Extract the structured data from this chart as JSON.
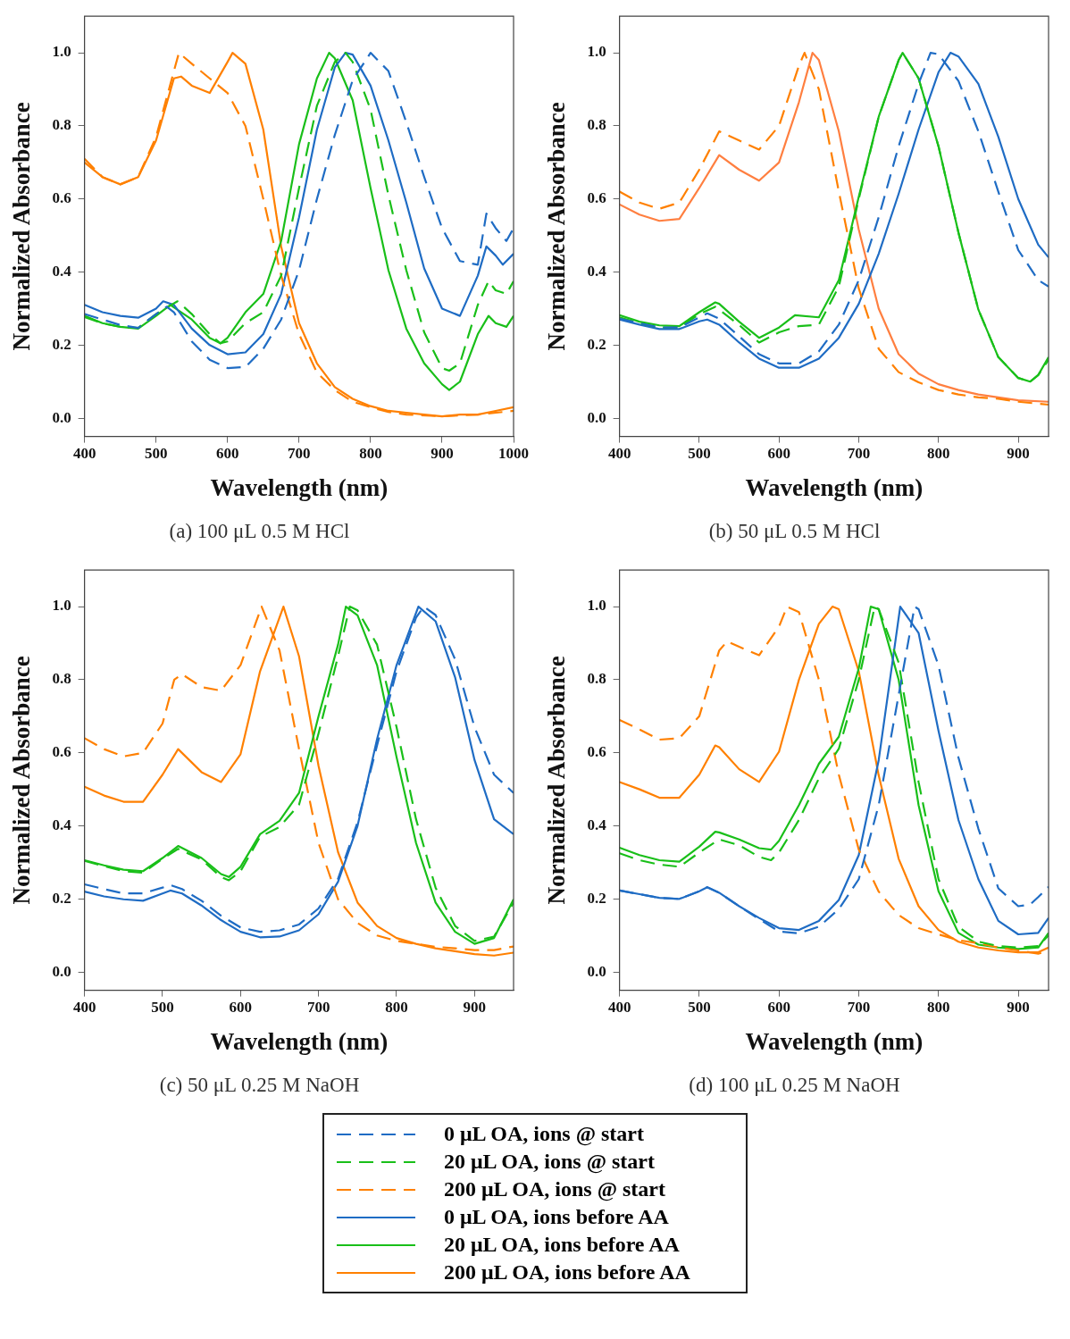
{
  "chart_data": [
    {
      "type": "line",
      "title": "(a) 100 μL 0.5 M HCl",
      "xlabel": "Wavelength (nm)",
      "ylabel": "Normalized Absorbance",
      "xlim": [
        400,
        1000
      ],
      "xticks": [
        400,
        500,
        600,
        700,
        800,
        900,
        1000
      ],
      "ylim": [
        -0.05,
        1.1
      ],
      "yticks": [
        {
          "value": 0,
          "label": "0.0"
        },
        {
          "value": 0.2,
          "label": "0.2"
        },
        {
          "value": 0.4,
          "label": "0.4"
        },
        {
          "value": 0.6,
          "label": "0.6"
        },
        {
          "value": 0.8,
          "label": "0.8"
        },
        {
          "value": 1,
          "label": "1.0"
        }
      ],
      "grid": false,
      "marker": "none",
      "legend": "bottom",
      "series": [
        {
          "name": "0 μL OA, ions @ start",
          "color": "#1f6cc4",
          "line_style": "dashed",
          "x": [
            400,
            425,
            450,
            475,
            500,
            515,
            525,
            550,
            575,
            600,
            625,
            650,
            675,
            700,
            725,
            750,
            775,
            800,
            825,
            850,
            875,
            900,
            925,
            950,
            962,
            975,
            990,
            1000
          ],
          "values": [
            0.285,
            0.27,
            0.255,
            0.247,
            0.285,
            0.305,
            0.29,
            0.21,
            0.16,
            0.137,
            0.14,
            0.19,
            0.27,
            0.405,
            0.6,
            0.775,
            0.925,
            1.0,
            0.95,
            0.81,
            0.66,
            0.52,
            0.43,
            0.42,
            0.56,
            0.52,
            0.485,
            0.52
          ]
        },
        {
          "name": "20 μL OA, ions @ start",
          "color": "#19bf19",
          "line_style": "dashed",
          "x": [
            400,
            425,
            450,
            475,
            500,
            530,
            550,
            575,
            590,
            600,
            625,
            650,
            675,
            700,
            725,
            750,
            765,
            775,
            800,
            825,
            850,
            875,
            900,
            910,
            925,
            950,
            965,
            975,
            990,
            1000
          ],
          "values": [
            0.277,
            0.26,
            0.25,
            0.247,
            0.285,
            0.32,
            0.285,
            0.23,
            0.205,
            0.21,
            0.26,
            0.29,
            0.39,
            0.63,
            0.855,
            0.975,
            1.0,
            0.975,
            0.845,
            0.61,
            0.405,
            0.235,
            0.137,
            0.13,
            0.15,
            0.31,
            0.375,
            0.35,
            0.34,
            0.375
          ]
        },
        {
          "name": "200 μL OA, ions @ start",
          "color": "#ff8000",
          "line_style": "dashed",
          "x": [
            400,
            425,
            450,
            475,
            500,
            525,
            532,
            550,
            575,
            600,
            625,
            650,
            675,
            700,
            725,
            750,
            775,
            800,
            825,
            850,
            900,
            950,
            1000
          ],
          "values": [
            0.71,
            0.66,
            0.64,
            0.66,
            0.77,
            0.95,
            1.0,
            0.97,
            0.93,
            0.89,
            0.8,
            0.6,
            0.39,
            0.23,
            0.125,
            0.077,
            0.045,
            0.03,
            0.017,
            0.01,
            0.005,
            0.01,
            0.02
          ]
        },
        {
          "name": "0 μL OA, ions before AA",
          "color": "#1f6cc4",
          "line_style": "solid",
          "x": [
            400,
            425,
            450,
            475,
            500,
            510,
            525,
            550,
            575,
            600,
            625,
            650,
            675,
            700,
            725,
            750,
            765,
            775,
            800,
            825,
            850,
            875,
            900,
            925,
            950,
            962,
            975,
            985,
            1000
          ],
          "values": [
            0.31,
            0.29,
            0.28,
            0.275,
            0.3,
            0.32,
            0.31,
            0.245,
            0.2,
            0.175,
            0.18,
            0.23,
            0.34,
            0.55,
            0.79,
            0.96,
            1.0,
            0.995,
            0.91,
            0.76,
            0.59,
            0.41,
            0.3,
            0.28,
            0.39,
            0.47,
            0.445,
            0.42,
            0.45
          ]
        },
        {
          "name": "20 μL OA, ions before AA",
          "color": "#19bf19",
          "line_style": "solid",
          "x": [
            400,
            425,
            450,
            475,
            500,
            520,
            550,
            575,
            590,
            600,
            625,
            650,
            675,
            700,
            725,
            742,
            750,
            775,
            800,
            825,
            850,
            875,
            900,
            910,
            925,
            950,
            965,
            975,
            990,
            1000
          ],
          "values": [
            0.28,
            0.26,
            0.25,
            0.245,
            0.28,
            0.31,
            0.27,
            0.22,
            0.205,
            0.22,
            0.29,
            0.34,
            0.485,
            0.75,
            0.93,
            1.0,
            0.985,
            0.87,
            0.63,
            0.405,
            0.245,
            0.15,
            0.093,
            0.077,
            0.1,
            0.23,
            0.28,
            0.26,
            0.25,
            0.28
          ]
        },
        {
          "name": "200 μL OA, ions before AA",
          "color": "#ff8000",
          "line_style": "solid",
          "x": [
            400,
            425,
            450,
            475,
            500,
            525,
            535,
            550,
            575,
            600,
            607,
            625,
            650,
            675,
            700,
            725,
            750,
            775,
            800,
            825,
            850,
            875,
            900,
            925,
            950,
            975,
            1000
          ],
          "values": [
            0.7,
            0.66,
            0.64,
            0.66,
            0.76,
            0.93,
            0.935,
            0.91,
            0.89,
            0.975,
            1.0,
            0.97,
            0.79,
            0.47,
            0.26,
            0.15,
            0.085,
            0.053,
            0.033,
            0.02,
            0.015,
            0.01,
            0.005,
            0.01,
            0.01,
            0.02,
            0.03
          ]
        }
      ]
    },
    {
      "type": "line",
      "title": "(b) 50 μL 0.5 M HCl",
      "xlabel": "Wavelength (nm)",
      "ylabel": "Normalized Absorbance",
      "xlim": [
        400,
        938
      ],
      "xticks": [
        400,
        500,
        600,
        700,
        800,
        900
      ],
      "ylim": [
        -0.05,
        1.1
      ],
      "yticks": [
        {
          "value": 0,
          "label": "0.0"
        },
        {
          "value": 0.2,
          "label": "0.2"
        },
        {
          "value": 0.4,
          "label": "0.4"
        },
        {
          "value": 0.6,
          "label": "0.6"
        },
        {
          "value": 0.8,
          "label": "0.8"
        },
        {
          "value": 1,
          "label": "1.0"
        }
      ],
      "grid": false,
      "marker": "none",
      "series": [
        {
          "color": "#1f6cc4",
          "line_style": "dashed",
          "x": [
            400,
            425,
            450,
            475,
            500,
            510,
            525,
            550,
            575,
            600,
            625,
            650,
            675,
            700,
            725,
            750,
            775,
            790,
            800,
            825,
            850,
            875,
            900,
            925,
            938
          ],
          "values": [
            0.272,
            0.26,
            0.248,
            0.248,
            0.276,
            0.287,
            0.272,
            0.224,
            0.175,
            0.15,
            0.15,
            0.183,
            0.256,
            0.378,
            0.55,
            0.744,
            0.915,
            1.0,
            0.996,
            0.923,
            0.785,
            0.62,
            0.46,
            0.378,
            0.36
          ]
        },
        {
          "color": "#19bf19",
          "line_style": "dashed",
          "x": [
            400,
            425,
            450,
            475,
            500,
            520,
            550,
            575,
            600,
            625,
            650,
            675,
            700,
            725,
            750,
            755,
            775,
            800,
            825,
            850,
            875,
            900,
            915,
            925,
            938
          ],
          "values": [
            0.276,
            0.26,
            0.248,
            0.248,
            0.285,
            0.305,
            0.255,
            0.207,
            0.235,
            0.252,
            0.256,
            0.36,
            0.6,
            0.825,
            0.98,
            1.0,
            0.93,
            0.744,
            0.508,
            0.297,
            0.167,
            0.11,
            0.1,
            0.118,
            0.16
          ]
        },
        {
          "color": "#ff8000",
          "line_style": "dashed",
          "x": [
            400,
            425,
            450,
            475,
            500,
            525,
            550,
            575,
            600,
            625,
            632,
            650,
            675,
            700,
            725,
            750,
            775,
            800,
            825,
            850,
            875,
            900,
            938
          ],
          "values": [
            0.62,
            0.59,
            0.573,
            0.59,
            0.68,
            0.785,
            0.76,
            0.735,
            0.8,
            0.965,
            1.0,
            0.9,
            0.62,
            0.355,
            0.19,
            0.126,
            0.098,
            0.077,
            0.065,
            0.057,
            0.053,
            0.045,
            0.037
          ]
        },
        {
          "color": "#1f6cc4",
          "line_style": "solid",
          "x": [
            400,
            425,
            450,
            475,
            500,
            510,
            525,
            550,
            575,
            600,
            625,
            650,
            675,
            700,
            725,
            750,
            775,
            800,
            815,
            825,
            850,
            875,
            900,
            925,
            938
          ],
          "values": [
            0.27,
            0.256,
            0.244,
            0.244,
            0.265,
            0.27,
            0.256,
            0.207,
            0.163,
            0.138,
            0.138,
            0.163,
            0.22,
            0.313,
            0.45,
            0.614,
            0.79,
            0.947,
            1.0,
            0.99,
            0.915,
            0.77,
            0.6,
            0.475,
            0.44
          ]
        },
        {
          "color": "#19bf19",
          "line_style": "solid",
          "x": [
            400,
            425,
            450,
            475,
            500,
            520,
            525,
            550,
            575,
            600,
            620,
            650,
            675,
            700,
            725,
            750,
            755,
            775,
            800,
            825,
            850,
            875,
            900,
            915,
            925,
            938
          ],
          "values": [
            0.282,
            0.264,
            0.254,
            0.252,
            0.29,
            0.317,
            0.313,
            0.264,
            0.22,
            0.248,
            0.282,
            0.276,
            0.378,
            0.606,
            0.825,
            0.98,
            1.0,
            0.93,
            0.744,
            0.508,
            0.297,
            0.167,
            0.11,
            0.1,
            0.118,
            0.167
          ]
        },
        {
          "color": "#ff7f40",
          "line_style": "solid",
          "x": [
            400,
            425,
            450,
            475,
            500,
            525,
            550,
            575,
            600,
            625,
            642,
            650,
            675,
            700,
            725,
            750,
            775,
            800,
            825,
            850,
            875,
            900,
            938
          ],
          "values": [
            0.585,
            0.557,
            0.54,
            0.545,
            0.63,
            0.72,
            0.68,
            0.65,
            0.7,
            0.865,
            1.0,
            0.98,
            0.785,
            0.516,
            0.3,
            0.175,
            0.122,
            0.093,
            0.077,
            0.065,
            0.057,
            0.049,
            0.045
          ]
        }
      ]
    },
    {
      "type": "line",
      "title": "(c) 50 μL 0.25 M NaOH",
      "xlabel": "Wavelength (nm)",
      "ylabel": "Normalized Absorbance",
      "xlim": [
        400,
        950
      ],
      "xticks": [
        400,
        500,
        600,
        700,
        800,
        900
      ],
      "ylim": [
        -0.05,
        1.1
      ],
      "yticks": [
        {
          "value": 0,
          "label": "0.0"
        },
        {
          "value": 0.2,
          "label": "0.2"
        },
        {
          "value": 0.4,
          "label": "0.4"
        },
        {
          "value": 0.6,
          "label": "0.6"
        },
        {
          "value": 0.8,
          "label": "0.8"
        },
        {
          "value": 1,
          "label": "1.0"
        }
      ],
      "grid": false,
      "marker": "none",
      "series": [
        {
          "color": "#1f6cc4",
          "line_style": "dashed",
          "x": [
            400,
            425,
            450,
            475,
            500,
            510,
            525,
            550,
            575,
            600,
            625,
            650,
            675,
            700,
            725,
            750,
            775,
            800,
            825,
            835,
            850,
            875,
            900,
            925,
            950
          ],
          "values": [
            0.24,
            0.227,
            0.215,
            0.215,
            0.231,
            0.238,
            0.227,
            0.195,
            0.154,
            0.122,
            0.11,
            0.114,
            0.13,
            0.174,
            0.255,
            0.41,
            0.62,
            0.823,
            0.97,
            1.0,
            0.977,
            0.856,
            0.67,
            0.54,
            0.49
          ]
        },
        {
          "color": "#19bf19",
          "line_style": "dashed",
          "x": [
            400,
            450,
            475,
            500,
            520,
            550,
            575,
            585,
            600,
            625,
            650,
            675,
            700,
            725,
            740,
            750,
            775,
            800,
            825,
            850,
            875,
            900,
            925,
            950
          ],
          "values": [
            0.304,
            0.276,
            0.272,
            0.31,
            0.337,
            0.308,
            0.26,
            0.251,
            0.276,
            0.37,
            0.397,
            0.458,
            0.653,
            0.864,
            1.0,
            0.99,
            0.896,
            0.67,
            0.418,
            0.231,
            0.126,
            0.085,
            0.097,
            0.19
          ]
        },
        {
          "color": "#ff8000",
          "line_style": "dashed",
          "x": [
            400,
            425,
            450,
            475,
            500,
            515,
            525,
            550,
            575,
            600,
            627,
            650,
            675,
            700,
            725,
            750,
            775,
            800,
            825,
            850,
            875,
            900,
            925,
            950
          ],
          "values": [
            0.64,
            0.61,
            0.59,
            0.6,
            0.68,
            0.8,
            0.815,
            0.78,
            0.77,
            0.84,
            1.0,
            0.88,
            0.61,
            0.353,
            0.199,
            0.134,
            0.1,
            0.085,
            0.077,
            0.069,
            0.065,
            0.06,
            0.06,
            0.07
          ]
        },
        {
          "color": "#1f6cc4",
          "line_style": "solid",
          "x": [
            400,
            425,
            450,
            475,
            500,
            510,
            525,
            550,
            575,
            600,
            625,
            650,
            675,
            700,
            725,
            750,
            775,
            800,
            828,
            850,
            875,
            900,
            925,
            950
          ],
          "values": [
            0.22,
            0.207,
            0.199,
            0.195,
            0.215,
            0.223,
            0.215,
            0.182,
            0.142,
            0.11,
            0.095,
            0.097,
            0.114,
            0.158,
            0.247,
            0.4,
            0.637,
            0.84,
            1.0,
            0.96,
            0.807,
            0.58,
            0.418,
            0.377
          ]
        },
        {
          "color": "#19bf19",
          "line_style": "solid",
          "x": [
            400,
            425,
            450,
            475,
            500,
            520,
            550,
            575,
            585,
            600,
            625,
            650,
            675,
            700,
            725,
            735,
            750,
            775,
            800,
            825,
            850,
            875,
            900,
            925,
            950
          ],
          "values": [
            0.306,
            0.292,
            0.28,
            0.276,
            0.312,
            0.345,
            0.312,
            0.268,
            0.26,
            0.288,
            0.377,
            0.414,
            0.49,
            0.7,
            0.896,
            1.0,
            0.976,
            0.84,
            0.588,
            0.353,
            0.19,
            0.11,
            0.077,
            0.093,
            0.199
          ]
        },
        {
          "color": "#ff8000",
          "line_style": "solid",
          "x": [
            400,
            425,
            450,
            475,
            500,
            520,
            550,
            575,
            600,
            625,
            655,
            675,
            700,
            725,
            750,
            775,
            800,
            825,
            850,
            875,
            900,
            925,
            950
          ],
          "values": [
            0.507,
            0.483,
            0.466,
            0.466,
            0.54,
            0.61,
            0.547,
            0.52,
            0.596,
            0.823,
            1.0,
            0.864,
            0.564,
            0.328,
            0.19,
            0.126,
            0.093,
            0.077,
            0.065,
            0.057,
            0.049,
            0.045,
            0.053
          ]
        }
      ]
    },
    {
      "type": "line",
      "title": "(d) 100 μL 0.25 M NaOH",
      "xlabel": "Wavelength (nm)",
      "ylabel": "Normalized Absorbance",
      "xlim": [
        400,
        938
      ],
      "xticks": [
        400,
        500,
        600,
        700,
        800,
        900
      ],
      "ylim": [
        -0.05,
        1.1
      ],
      "yticks": [
        {
          "value": 0,
          "label": "0.0"
        },
        {
          "value": 0.2,
          "label": "0.2"
        },
        {
          "value": 0.4,
          "label": "0.4"
        },
        {
          "value": 0.6,
          "label": "0.6"
        },
        {
          "value": 0.8,
          "label": "0.8"
        },
        {
          "value": 1,
          "label": "1.0"
        }
      ],
      "grid": false,
      "marker": "none",
      "series": [
        {
          "color": "#1f6cc4",
          "line_style": "dashed",
          "x": [
            400,
            425,
            450,
            475,
            500,
            510,
            525,
            550,
            575,
            600,
            625,
            650,
            675,
            700,
            725,
            750,
            770,
            775,
            800,
            825,
            850,
            875,
            900,
            915,
            925,
            938
          ],
          "values": [
            0.223,
            0.213,
            0.203,
            0.2,
            0.221,
            0.232,
            0.217,
            0.18,
            0.145,
            0.111,
            0.106,
            0.124,
            0.172,
            0.254,
            0.457,
            0.758,
            1.0,
            0.993,
            0.839,
            0.587,
            0.392,
            0.229,
            0.18,
            0.185,
            0.205,
            0.233
          ]
        },
        {
          "color": "#19bf19",
          "line_style": "dashed",
          "x": [
            400,
            425,
            450,
            475,
            500,
            525,
            550,
            575,
            590,
            600,
            625,
            650,
            675,
            700,
            720,
            725,
            750,
            775,
            800,
            825,
            850,
            875,
            900,
            925,
            938
          ],
          "values": [
            0.325,
            0.306,
            0.294,
            0.288,
            0.327,
            0.363,
            0.347,
            0.315,
            0.306,
            0.327,
            0.416,
            0.53,
            0.611,
            0.8,
            1.0,
            0.993,
            0.847,
            0.52,
            0.254,
            0.124,
            0.083,
            0.071,
            0.067,
            0.071,
            0.1
          ]
        },
        {
          "color": "#ff8000",
          "line_style": "dashed",
          "x": [
            400,
            425,
            450,
            475,
            500,
            525,
            535,
            550,
            575,
            600,
            610,
            625,
            650,
            675,
            700,
            725,
            750,
            775,
            800,
            825,
            850,
            875,
            900,
            925,
            938
          ],
          "values": [
            0.69,
            0.664,
            0.636,
            0.64,
            0.7,
            0.88,
            0.905,
            0.89,
            0.867,
            0.945,
            1.0,
            0.985,
            0.8,
            0.54,
            0.335,
            0.22,
            0.156,
            0.12,
            0.103,
            0.087,
            0.079,
            0.067,
            0.059,
            0.05,
            0.059
          ]
        },
        {
          "color": "#1f6cc4",
          "line_style": "solid",
          "x": [
            400,
            425,
            450,
            475,
            500,
            510,
            525,
            550,
            575,
            600,
            625,
            650,
            675,
            700,
            725,
            752,
            775,
            800,
            825,
            850,
            875,
            900,
            925,
            938
          ],
          "values": [
            0.223,
            0.213,
            0.203,
            0.2,
            0.221,
            0.232,
            0.217,
            0.18,
            0.148,
            0.12,
            0.115,
            0.14,
            0.197,
            0.32,
            0.58,
            1.0,
            0.928,
            0.66,
            0.416,
            0.254,
            0.14,
            0.103,
            0.107,
            0.148
          ]
        },
        {
          "color": "#19bf19",
          "line_style": "solid",
          "x": [
            400,
            425,
            450,
            475,
            500,
            520,
            525,
            550,
            575,
            590,
            600,
            625,
            650,
            675,
            700,
            715,
            725,
            750,
            775,
            800,
            825,
            850,
            875,
            900,
            925,
            938
          ],
          "values": [
            0.34,
            0.32,
            0.306,
            0.302,
            0.343,
            0.384,
            0.382,
            0.363,
            0.339,
            0.335,
            0.359,
            0.457,
            0.57,
            0.644,
            0.831,
            1.0,
            0.993,
            0.8,
            0.457,
            0.221,
            0.107,
            0.075,
            0.067,
            0.063,
            0.067,
            0.107
          ]
        },
        {
          "color": "#ff8000",
          "line_style": "solid",
          "x": [
            400,
            425,
            450,
            475,
            500,
            520,
            525,
            550,
            575,
            600,
            625,
            650,
            667,
            675,
            700,
            725,
            750,
            775,
            800,
            825,
            850,
            875,
            900,
            925,
            938
          ],
          "values": [
            0.52,
            0.5,
            0.477,
            0.477,
            0.54,
            0.62,
            0.615,
            0.555,
            0.52,
            0.603,
            0.8,
            0.953,
            1.0,
            0.993,
            0.823,
            0.538,
            0.31,
            0.18,
            0.115,
            0.083,
            0.067,
            0.059,
            0.054,
            0.054,
            0.067
          ]
        }
      ]
    }
  ]
}
